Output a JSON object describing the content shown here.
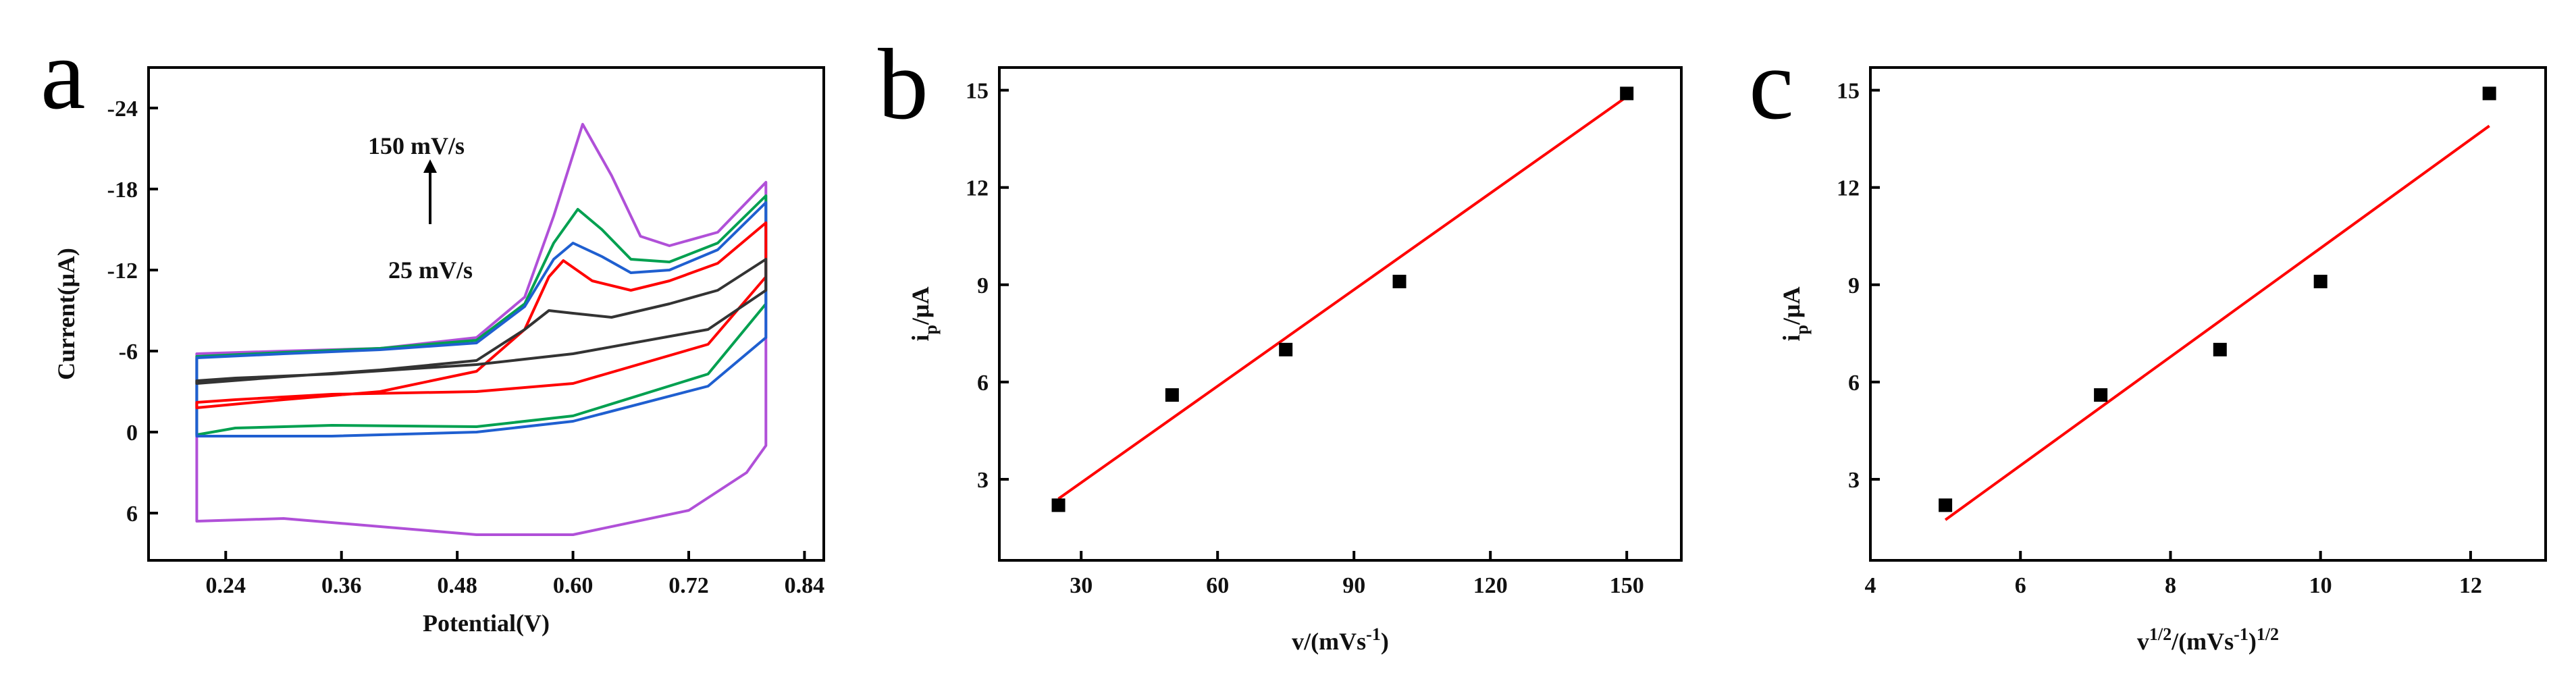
{
  "figure": {
    "panels": [
      {
        "letter": "a"
      },
      {
        "letter": "b"
      },
      {
        "letter": "c"
      }
    ]
  },
  "colors": {
    "axis": "#000000",
    "fit_line": "#ff0000",
    "points": "#000000",
    "cv_25": "#333333",
    "cv_50": "#ff0000",
    "cv_75": "#1f5fd0",
    "cv_100": "#00a050",
    "cv_150": "#b050d8"
  },
  "chart_data": [
    {
      "type": "line",
      "panel": "a",
      "xlabel": "Potential(V)",
      "ylabel": "Current(μA)",
      "xlim": [
        0.16,
        0.86
      ],
      "ylim": [
        9.5,
        -27
      ],
      "y_inverted": true,
      "xticks": [
        0.24,
        0.36,
        0.48,
        0.6,
        0.72,
        0.84
      ],
      "xtick_labels": [
        "0.24",
        "0.36",
        "0.48",
        "0.60",
        "0.72",
        "0.84"
      ],
      "yticks": [
        -24,
        -18,
        -12,
        -6,
        0,
        6
      ],
      "ytick_labels": [
        "-24",
        "-18",
        "-12",
        "-6",
        "0",
        "6"
      ],
      "annotations": {
        "top": "150 mV/s",
        "bottom": "25 mV/s"
      },
      "series": [
        {
          "color_key": "cv_150",
          "anodic": [
            [
              0.21,
              -5.8
            ],
            [
              0.3,
              -6.0
            ],
            [
              0.4,
              -6.2
            ],
            [
              0.5,
              -7.0
            ],
            [
              0.55,
              -10
            ],
            [
              0.58,
              -16
            ],
            [
              0.61,
              -22.8
            ],
            [
              0.64,
              -19
            ],
            [
              0.67,
              -14.5
            ],
            [
              0.7,
              -13.8
            ],
            [
              0.75,
              -14.8
            ],
            [
              0.8,
              -18.5
            ]
          ],
          "cathodic": [
            [
              0.8,
              -18.5
            ],
            [
              0.8,
              1.0
            ],
            [
              0.78,
              3.0
            ],
            [
              0.72,
              5.8
            ],
            [
              0.6,
              7.6
            ],
            [
              0.5,
              7.6
            ],
            [
              0.3,
              6.4
            ],
            [
              0.21,
              6.6
            ],
            [
              0.21,
              -5.8
            ]
          ]
        },
        {
          "color_key": "cv_100",
          "anodic": [
            [
              0.21,
              -5.6
            ],
            [
              0.3,
              -5.9
            ],
            [
              0.4,
              -6.2
            ],
            [
              0.5,
              -6.8
            ],
            [
              0.55,
              -9.5
            ],
            [
              0.58,
              -14
            ],
            [
              0.605,
              -16.5
            ],
            [
              0.63,
              -15
            ],
            [
              0.66,
              -12.8
            ],
            [
              0.7,
              -12.6
            ],
            [
              0.75,
              -14
            ],
            [
              0.8,
              -17.5
            ]
          ],
          "cathodic": [
            [
              0.8,
              -17.5
            ],
            [
              0.8,
              -9.5
            ],
            [
              0.74,
              -4.3
            ],
            [
              0.6,
              -1.2
            ],
            [
              0.5,
              -0.4
            ],
            [
              0.35,
              -0.5
            ],
            [
              0.25,
              -0.3
            ],
            [
              0.21,
              0.2
            ],
            [
              0.21,
              -5.6
            ]
          ]
        },
        {
          "color_key": "cv_75",
          "anodic": [
            [
              0.21,
              -5.5
            ],
            [
              0.3,
              -5.8
            ],
            [
              0.4,
              -6.1
            ],
            [
              0.5,
              -6.6
            ],
            [
              0.55,
              -9.3
            ],
            [
              0.58,
              -12.8
            ],
            [
              0.6,
              -14
            ],
            [
              0.63,
              -13
            ],
            [
              0.66,
              -11.8
            ],
            [
              0.7,
              -12
            ],
            [
              0.75,
              -13.5
            ],
            [
              0.8,
              -17
            ]
          ],
          "cathodic": [
            [
              0.8,
              -17
            ],
            [
              0.8,
              -7
            ],
            [
              0.74,
              -3.4
            ],
            [
              0.6,
              -0.8
            ],
            [
              0.5,
              0
            ],
            [
              0.35,
              0.3
            ],
            [
              0.25,
              0.3
            ],
            [
              0.21,
              0.3
            ],
            [
              0.21,
              -5.5
            ]
          ]
        },
        {
          "color_key": "cv_50",
          "anodic": [
            [
              0.21,
              -1.8
            ],
            [
              0.3,
              -2.4
            ],
            [
              0.4,
              -3.0
            ],
            [
              0.5,
              -4.5
            ],
            [
              0.55,
              -7.6
            ],
            [
              0.575,
              -11.5
            ],
            [
              0.59,
              -12.7
            ],
            [
              0.62,
              -11.2
            ],
            [
              0.66,
              -10.5
            ],
            [
              0.7,
              -11.2
            ],
            [
              0.75,
              -12.5
            ],
            [
              0.8,
              -15.5
            ]
          ],
          "cathodic": [
            [
              0.8,
              -15.5
            ],
            [
              0.8,
              -11.5
            ],
            [
              0.74,
              -6.5
            ],
            [
              0.6,
              -3.6
            ],
            [
              0.5,
              -3.0
            ],
            [
              0.35,
              -2.8
            ],
            [
              0.25,
              -2.4
            ],
            [
              0.21,
              -2.2
            ],
            [
              0.21,
              -1.8
            ]
          ]
        },
        {
          "color_key": "cv_25",
          "anodic": [
            [
              0.21,
              -3.6
            ],
            [
              0.3,
              -4.1
            ],
            [
              0.4,
              -4.6
            ],
            [
              0.5,
              -5.3
            ],
            [
              0.55,
              -7.6
            ],
            [
              0.575,
              -9.0
            ],
            [
              0.6,
              -8.8
            ],
            [
              0.64,
              -8.5
            ],
            [
              0.7,
              -9.5
            ],
            [
              0.75,
              -10.5
            ],
            [
              0.8,
              -12.8
            ]
          ],
          "cathodic": [
            [
              0.8,
              -12.8
            ],
            [
              0.8,
              -10.5
            ],
            [
              0.74,
              -7.6
            ],
            [
              0.6,
              -5.8
            ],
            [
              0.5,
              -5.0
            ],
            [
              0.35,
              -4.3
            ],
            [
              0.25,
              -4.0
            ],
            [
              0.21,
              -3.8
            ],
            [
              0.21,
              -3.6
            ]
          ]
        }
      ]
    },
    {
      "type": "scatter",
      "panel": "b",
      "xlabel": "v/(mVs",
      "xlabel_sup": "-1",
      "xlabel_tail": ")",
      "ylabel": "i",
      "ylabel_sub": "p",
      "ylabel_tail": "/μA",
      "xlim": [
        12,
        162
      ],
      "ylim": [
        0.5,
        15.7
      ],
      "xticks": [
        30,
        60,
        90,
        120,
        150
      ],
      "xtick_labels": [
        "30",
        "60",
        "90",
        "120",
        "150"
      ],
      "yticks": [
        3,
        6,
        9,
        12,
        15
      ],
      "ytick_labels": [
        "3",
        "6",
        "9",
        "12",
        "15"
      ],
      "x": [
        25,
        50,
        75,
        100,
        150
      ],
      "y": [
        2.2,
        5.6,
        7.0,
        9.1,
        14.9
      ],
      "fit": {
        "x": [
          25,
          150
        ],
        "y": [
          2.4,
          14.8
        ]
      }
    },
    {
      "type": "scatter",
      "panel": "c",
      "xlabel": "v",
      "xlabel_sup": "1/2",
      "xlabel_mid": "/(mVs",
      "xlabel_sup2": "-1",
      "xlabel_close": ")",
      "xlabel_sup3": "1/2",
      "ylabel": "i",
      "ylabel_sub": "p",
      "ylabel_tail": "/μA",
      "xlim": [
        4,
        13
      ],
      "ylim": [
        0.5,
        15.7
      ],
      "xticks": [
        4,
        6,
        8,
        10,
        12
      ],
      "xtick_labels": [
        "4",
        "6",
        "8",
        "10",
        "12"
      ],
      "yticks": [
        3,
        6,
        9,
        12,
        15
      ],
      "ytick_labels": [
        "3",
        "6",
        "9",
        "12",
        "15"
      ],
      "x": [
        5.0,
        7.07,
        8.66,
        10.0,
        12.25
      ],
      "y": [
        2.2,
        5.6,
        7.0,
        9.1,
        14.9
      ],
      "fit": {
        "x": [
          5.0,
          12.25
        ],
        "y": [
          1.75,
          13.9
        ]
      }
    }
  ]
}
